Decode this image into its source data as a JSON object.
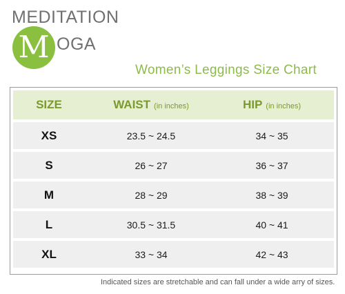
{
  "brand": {
    "top": "MEDITATION",
    "logo_letter": "M",
    "rest": "OGA",
    "logo_color": "#8bbf3f"
  },
  "chart_title": "Women’s  Leggings Size Chart",
  "table": {
    "headers": {
      "size": "SIZE",
      "waist": "WAIST",
      "waist_unit": "(in inches)",
      "hip": "HIP",
      "hip_unit": "(in inches)"
    },
    "rows": [
      {
        "size": "XS",
        "waist": "23.5 ~ 24.5",
        "hip": "34 ~ 35"
      },
      {
        "size": "S",
        "waist": "26 ~ 27",
        "hip": "36 ~ 37"
      },
      {
        "size": "M",
        "waist": "28 ~ 29",
        "hip": "38 ~ 39"
      },
      {
        "size": "L",
        "waist": "30.5 ~ 31.5",
        "hip": "40 ~ 41"
      },
      {
        "size": "XL",
        "waist": "33 ~ 34",
        "hip": "42 ~ 43"
      }
    ],
    "header_bg": "#e7efd2",
    "row_bg": "#efefef",
    "accent": "#7a9a2e"
  },
  "footnote": "Indicated sizes are stretchable and can fall under a wide arry of sizes."
}
